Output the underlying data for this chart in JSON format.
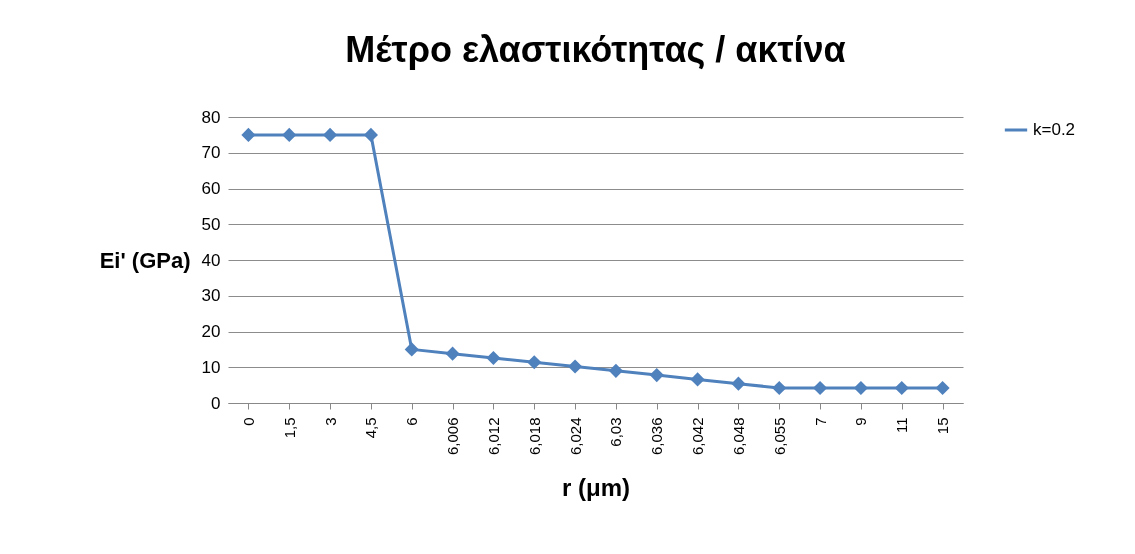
{
  "chart_data": {
    "type": "line",
    "title": "Μέτρο ελαστικότητας / ακτίνα",
    "xlabel": "r (μm)",
    "ylabel": "Ei' (GPa)",
    "categories": [
      "0",
      "1,5",
      "3",
      "4,5",
      "6",
      "6,006",
      "6,012",
      "6,018",
      "6,024",
      "6,03",
      "6,036",
      "6,042",
      "6,048",
      "6,055",
      "7",
      "9",
      "11",
      "15"
    ],
    "series": [
      {
        "name": "k=0.2",
        "color": "#4f81bd",
        "values": [
          75,
          75,
          75,
          75,
          15,
          13.8,
          12.6,
          11.4,
          10.2,
          9,
          7.8,
          6.6,
          5.4,
          4.2,
          4.2,
          4.2,
          4.2,
          4.2
        ]
      }
    ],
    "ylim": [
      0,
      80
    ],
    "yticks": [
      0,
      10,
      20,
      30,
      40,
      50,
      60,
      70,
      80
    ],
    "grid": "y",
    "legend": "right",
    "marker": "diamond",
    "line_style": "solid"
  }
}
